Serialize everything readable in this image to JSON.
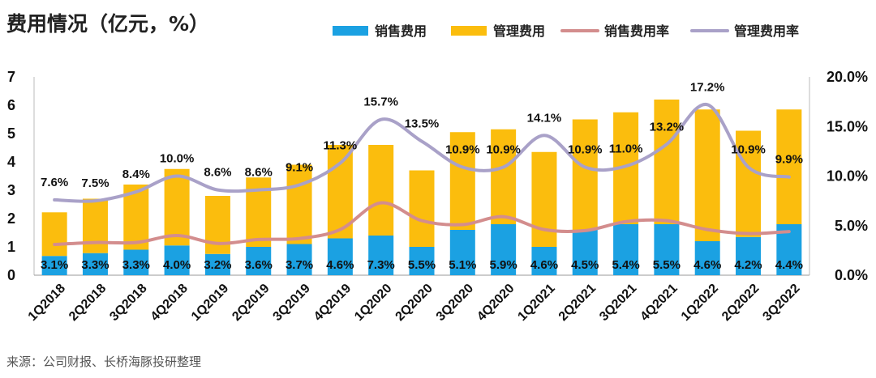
{
  "chart_data": {
    "type": "bar",
    "title": "费用情况（亿元，%）",
    "source": "来源：公司财报、长桥海豚投研整理",
    "categories": [
      "1Q2018",
      "2Q2018",
      "3Q2018",
      "4Q2018",
      "1Q2019",
      "2Q2019",
      "3Q2019",
      "4Q2019",
      "1Q2020",
      "2Q2020",
      "3Q2020",
      "4Q2020",
      "1Q2021",
      "2Q2021",
      "3Q2021",
      "4Q2021",
      "1Q2022",
      "2Q2022",
      "3Q2022"
    ],
    "y_left": {
      "ylim": [
        0,
        7
      ],
      "ticks": [
        "0",
        "1",
        "2",
        "3",
        "4",
        "5",
        "6",
        "7"
      ]
    },
    "y_right": {
      "ylim": [
        0,
        20
      ],
      "ticks": [
        "0.0%",
        "5.0%",
        "10.0%",
        "15.0%",
        "20.0%"
      ]
    },
    "series": [
      {
        "name": "销售费用",
        "kind": "bar",
        "color": "#1ba1e2",
        "values": [
          0.68,
          0.78,
          0.9,
          1.05,
          0.75,
          1.0,
          1.1,
          1.3,
          1.4,
          1.0,
          1.6,
          1.8,
          1.0,
          1.6,
          1.8,
          1.8,
          1.2,
          1.35,
          1.8
        ]
      },
      {
        "name": "管理费用",
        "kind": "bar",
        "color": "#fbbd0d",
        "values": [
          1.54,
          1.92,
          2.3,
          2.7,
          2.05,
          2.45,
          2.8,
          3.3,
          3.2,
          2.7,
          3.45,
          3.35,
          3.35,
          3.9,
          3.95,
          4.4,
          4.65,
          3.75,
          4.05
        ]
      },
      {
        "name": "销售费用率",
        "kind": "line",
        "color": "#d38d8d",
        "axis": "right",
        "values": [
          3.1,
          3.3,
          3.3,
          4.0,
          3.2,
          3.6,
          3.7,
          4.6,
          7.3,
          5.5,
          5.1,
          5.9,
          4.6,
          4.5,
          5.4,
          5.5,
          4.6,
          4.2,
          4.4
        ],
        "labels": [
          "3.1%",
          "3.3%",
          "3.3%",
          "4.0%",
          "3.2%",
          "3.6%",
          "3.7%",
          "4.6%",
          "7.3%",
          "5.5%",
          "5.1%",
          "5.9%",
          "4.6%",
          "4.5%",
          "5.4%",
          "5.5%",
          "4.6%",
          "4.2%",
          "4.4%"
        ]
      },
      {
        "name": "管理费用率",
        "kind": "line",
        "color": "#a9a1c8",
        "axis": "right",
        "values": [
          7.6,
          7.5,
          8.4,
          10.0,
          8.6,
          8.6,
          9.1,
          11.3,
          15.7,
          13.5,
          10.9,
          10.9,
          14.1,
          10.9,
          11.0,
          13.2,
          17.2,
          10.9,
          9.9
        ],
        "labels": [
          "7.6%",
          "7.5%",
          "8.4%",
          "10.0%",
          "8.6%",
          "8.6%",
          "9.1%",
          "11.3%",
          "15.7%",
          "13.5%",
          "10.9%",
          "10.9%",
          "14.1%",
          "10.9%",
          "11.0%",
          "13.2%",
          "17.2%",
          "10.9%",
          "9.9%"
        ]
      }
    ]
  }
}
